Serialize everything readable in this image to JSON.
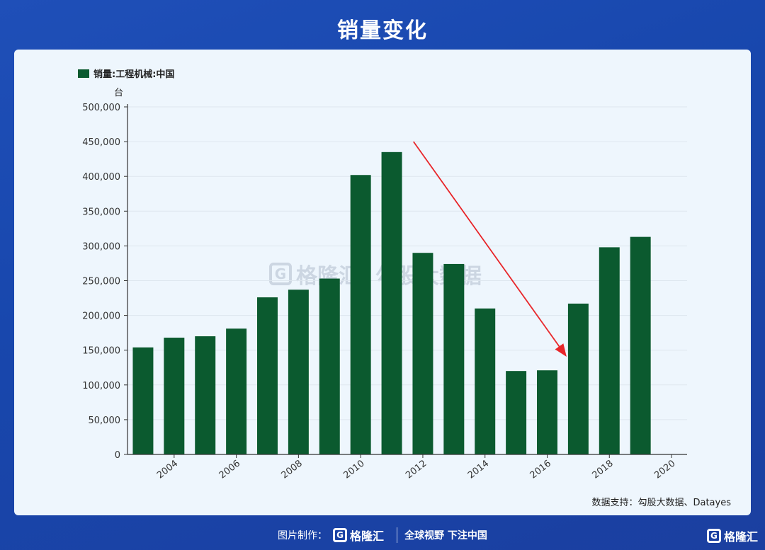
{
  "page_title": "销量变化",
  "chart_data": {
    "type": "bar",
    "title": "",
    "legend": [
      "销量:工程机械:中国"
    ],
    "legend_position": "top-left",
    "unit": "台",
    "series": [
      {
        "name": "销量:工程机械:中国",
        "color": "#0b5a2f",
        "x": [
          2003,
          2004,
          2005,
          2006,
          2007,
          2008,
          2009,
          2010,
          2011,
          2012,
          2013,
          2014,
          2015,
          2016,
          2017,
          2018,
          2019
        ],
        "values": [
          154000,
          168000,
          170000,
          181000,
          226000,
          237000,
          253000,
          402000,
          435000,
          290000,
          274000,
          210000,
          120000,
          121000,
          217000,
          298000,
          313000
        ]
      }
    ],
    "xlim": [
      2002.5,
      2020.5
    ],
    "ylim": [
      0,
      500000
    ],
    "x_ticks": [
      "2004",
      "2006",
      "2008",
      "2010",
      "2012",
      "2014",
      "2016",
      "2018",
      "2020"
    ],
    "x_tick_values": [
      2004,
      2006,
      2008,
      2010,
      2012,
      2014,
      2016,
      2018,
      2020
    ],
    "y_ticks": [
      "0",
      "50,000",
      "100,000",
      "150,000",
      "200,000",
      "250,000",
      "300,000",
      "350,000",
      "400,000",
      "450,000",
      "500,000"
    ],
    "y_tick_values": [
      0,
      50000,
      100000,
      150000,
      200000,
      250000,
      300000,
      350000,
      400000,
      450000,
      500000
    ],
    "grid": true,
    "annotation": {
      "type": "arrow",
      "color": "#e8262a",
      "from": [
        2011.7,
        450000
      ],
      "to": [
        2016.6,
        142000
      ]
    }
  },
  "watermark": {
    "logo_glyph": "G",
    "brand": "格隆汇",
    "partner": "勾股大数据"
  },
  "source_text": "数据支持：勾股大数据、Datayes",
  "footer": {
    "made_by": "图片制作：",
    "logo_glyph": "G",
    "brand": "格隆汇",
    "slogan": "全球视野 下注中国"
  },
  "corner_logo": {
    "glyph": "G",
    "brand": "格隆汇"
  }
}
